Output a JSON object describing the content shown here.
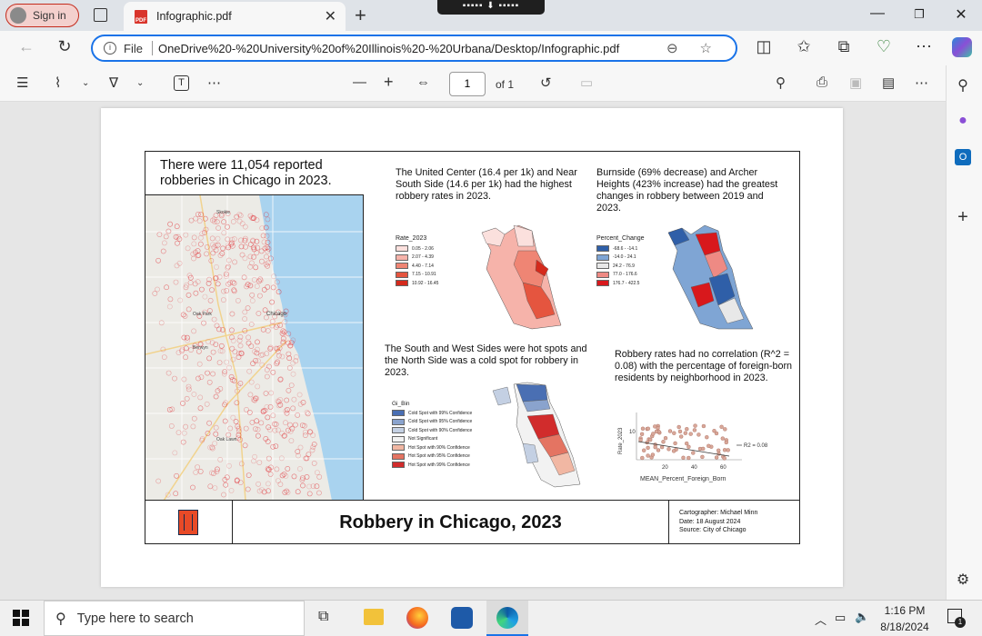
{
  "browser": {
    "signin_label": "Sign in",
    "tab_title": "Infographic.pdf",
    "new_tab": "+",
    "file_label": "File",
    "url": "OneDrive%20-%20University%20of%20Illinois%20-%20Urbana/Desktop/Infographic.pdf"
  },
  "pdf_toolbar": {
    "page_current": "1",
    "page_total_label": "of 1"
  },
  "infographic": {
    "headline": "There were 11,054 reported robberies in Chicago in 2023.",
    "top_center_text": "The United Center (16.4 per 1k) and Near South Side (14.6 per 1k) had the highest robbery rates in 2023.",
    "top_right_text": "Burnside (69% decrease) and Archer Heights (423% increase) had the greatest changes in robbery between 2019 and 2023.",
    "mid_left_text": "The South and West Sides were hot spots and the North Side was a cold spot for robbery in 2023.",
    "mid_right_text": "Robbery rates had no correlation (R^2 = 0.08) with the percentage of foreign-born residents by neighborhood in 2023.",
    "rate_legend": {
      "title": "Rate_2023",
      "items": [
        {
          "label": "0.05 - 2.06",
          "color": "#fbe0dd"
        },
        {
          "label": "2.07 - 4.39",
          "color": "#f6b3aa"
        },
        {
          "label": "4.40 - 7.14",
          "color": "#ef8574"
        },
        {
          "label": "7.15 - 10.91",
          "color": "#e5553f"
        },
        {
          "label": "10.92 - 16.45",
          "color": "#d42a1c"
        }
      ]
    },
    "change_legend": {
      "title": "Percent_Change",
      "items": [
        {
          "label": "-68.6 - -14.1",
          "color": "#2f5fa8"
        },
        {
          "label": "-14.0 - 24.1",
          "color": "#7fa5d4"
        },
        {
          "label": "24.2 - 76.9",
          "color": "#e8e8e8"
        },
        {
          "label": "77.0 - 176.6",
          "color": "#ee8a84"
        },
        {
          "label": "176.7 - 422.5",
          "color": "#d8181c"
        }
      ]
    },
    "gi_legend": {
      "title": "Gi_Bin",
      "items": [
        {
          "label": "Cold Spot with 99% Confidence",
          "color": "#4a6fb3"
        },
        {
          "label": "Cold Spot with 95% Confidence",
          "color": "#8aa3cd"
        },
        {
          "label": "Cold Spot with 90% Confidence",
          "color": "#c4d0e3"
        },
        {
          "label": "Not Significant",
          "color": "#f2f2f2"
        },
        {
          "label": "Hot Spot with 90% Confidence",
          "color": "#f1b7a3"
        },
        {
          "label": "Hot Spot with 95% Confidence",
          "color": "#e47462"
        },
        {
          "label": "Hot Spot with 99% Confidence",
          "color": "#d12c2c"
        }
      ]
    },
    "scatter": {
      "xlabel": "MEAN_Percent_Foreign_Born",
      "ylabel": "Rate_2023",
      "r2_label": "R2 = 0.08",
      "x_ticks": [
        "20",
        "40",
        "60"
      ],
      "y_ticks": [
        "10"
      ]
    },
    "map_labels": [
      "Skokie",
      "Oak Park",
      "Chicago",
      "Berwyn",
      "Oak Lawn"
    ],
    "footer_title": "Robbery in Chicago, 2023",
    "credit_lines": [
      "Cartographer: Michael Minn",
      "Date: 18 August 2024",
      "Source: City of Chicago"
    ],
    "logo_letter": "I"
  },
  "taskbar": {
    "search_placeholder": "Type here to search",
    "time": "1:16 PM",
    "date": "8/18/2024",
    "notification_count": "1"
  },
  "colors": {
    "accent": "#1a73e8",
    "illinois_orange": "#e84a27",
    "illinois_blue": "#13294b"
  }
}
